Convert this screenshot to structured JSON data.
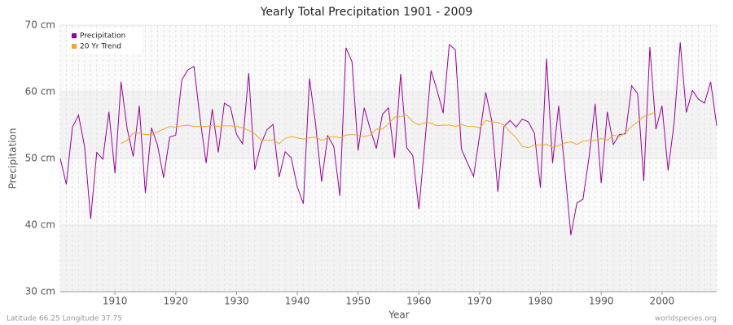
{
  "chart_data": {
    "type": "line",
    "title": "Yearly Total Precipitation 1901 - 2009",
    "x_label": "Year",
    "y_label": "Precipitation",
    "footer_left": "Latitude 66.25 Longitude 37.75",
    "footer_right": "worldspecies.org",
    "legend": "top-left",
    "grid": true,
    "xlim": [
      1901,
      2009
    ],
    "ylim": [
      30,
      70
    ],
    "xticks": [
      1910,
      1920,
      1930,
      1940,
      1950,
      1960,
      1970,
      1980,
      1990,
      2000
    ],
    "yticks": [
      {
        "value": 30,
        "label": "30 cm"
      },
      {
        "value": 40,
        "label": "40 cm"
      },
      {
        "value": 50,
        "label": "50 cm"
      },
      {
        "value": 60,
        "label": "60 cm"
      },
      {
        "value": 70,
        "label": "70 cm"
      }
    ],
    "x": [
      1901,
      1902,
      1903,
      1904,
      1905,
      1906,
      1907,
      1908,
      1909,
      1910,
      1911,
      1912,
      1913,
      1914,
      1915,
      1916,
      1917,
      1918,
      1919,
      1920,
      1921,
      1922,
      1923,
      1924,
      1925,
      1926,
      1927,
      1928,
      1929,
      1930,
      1931,
      1932,
      1933,
      1934,
      1935,
      1936,
      1937,
      1938,
      1939,
      1940,
      1941,
      1942,
      1943,
      1944,
      1945,
      1946,
      1947,
      1948,
      1949,
      1950,
      1951,
      1952,
      1953,
      1954,
      1955,
      1956,
      1957,
      1958,
      1959,
      1960,
      1961,
      1962,
      1963,
      1964,
      1965,
      1966,
      1967,
      1968,
      1969,
      1970,
      1971,
      1972,
      1973,
      1974,
      1975,
      1976,
      1977,
      1978,
      1979,
      1980,
      1981,
      1982,
      1983,
      1984,
      1985,
      1986,
      1987,
      1988,
      1989,
      1990,
      1991,
      1992,
      1993,
      1994,
      1995,
      1996,
      1997,
      1998,
      1999,
      2000,
      2001,
      2002,
      2003,
      2004,
      2005,
      2006,
      2007,
      2008,
      2009
    ],
    "series": [
      {
        "name": "Precipitation",
        "color": "#990099",
        "values": [
          50.0,
          46.1,
          54.7,
          56.5,
          51.8,
          40.9,
          50.9,
          49.9,
          57.0,
          47.8,
          61.5,
          54.5,
          50.3,
          57.9,
          44.8,
          54.6,
          52.0,
          47.1,
          53.2,
          53.5,
          61.8,
          63.3,
          63.8,
          56.0,
          49.3,
          57.4,
          50.9,
          58.3,
          57.7,
          53.6,
          52.2,
          62.8,
          48.3,
          52.1,
          54.3,
          55.1,
          47.2,
          51.0,
          50.1,
          45.7,
          43.2,
          62.0,
          55.2,
          46.5,
          53.4,
          51.8,
          44.4,
          66.6,
          64.5,
          51.2,
          57.6,
          54.4,
          51.5,
          56.6,
          57.6,
          50.1,
          62.7,
          51.6,
          50.4,
          42.4,
          52.5,
          63.2,
          60.2,
          56.8,
          67.1,
          66.3,
          51.4,
          49.3,
          47.3,
          53.5,
          59.9,
          55.6,
          45.0,
          54.8,
          55.7,
          54.7,
          55.9,
          55.5,
          53.8,
          45.6,
          65.0,
          49.3,
          57.9,
          48.5,
          38.5,
          43.3,
          43.9,
          50.2,
          58.2,
          46.3,
          57.0,
          52.1,
          53.6,
          53.7,
          60.9,
          59.7,
          46.6,
          66.7,
          54.4,
          57.9,
          48.2,
          55.4,
          67.4,
          56.9,
          60.2,
          58.9,
          58.3,
          61.5,
          54.9
        ]
      },
      {
        "name": "20 Yr Trend",
        "color": "#f5a623",
        "values": [
          null,
          null,
          null,
          null,
          null,
          null,
          null,
          null,
          null,
          null,
          52.2,
          52.7,
          53.8,
          53.8,
          53.6,
          53.6,
          54.0,
          54.4,
          54.8,
          54.7,
          54.9,
          55.0,
          54.8,
          54.8,
          54.8,
          55.0,
          54.8,
          54.9,
          54.9,
          54.8,
          54.6,
          54.2,
          53.7,
          52.8,
          52.7,
          52.8,
          52.2,
          53.0,
          53.3,
          53.1,
          52.9,
          53.1,
          53.2,
          52.7,
          53.1,
          53.3,
          53.1,
          53.5,
          53.6,
          53.5,
          53.3,
          53.5,
          54.4,
          54.4,
          55.2,
          56.2,
          56.3,
          56.5,
          55.5,
          55.0,
          55.4,
          55.3,
          54.9,
          55.0,
          55.0,
          54.8,
          55.1,
          54.8,
          54.8,
          54.6,
          55.7,
          55.5,
          55.4,
          55.0,
          54.0,
          53.1,
          51.8,
          51.6,
          52.0,
          52.0,
          52.1,
          51.7,
          51.9,
          52.3,
          52.5,
          52.1,
          52.6,
          52.7,
          52.7,
          53.0,
          52.7,
          53.5,
          53.3,
          53.9,
          54.8,
          55.5,
          56.3,
          56.6,
          57.0,
          null,
          null,
          null,
          null,
          null,
          null,
          null,
          null,
          null,
          null
        ]
      }
    ]
  }
}
